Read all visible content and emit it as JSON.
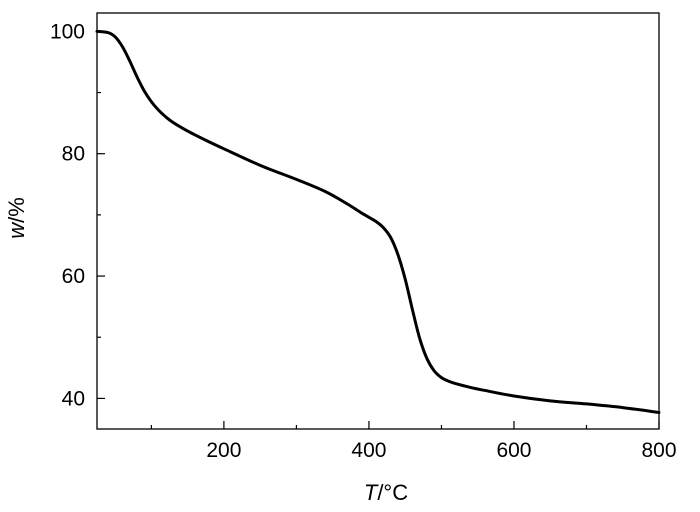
{
  "chart_data": {
    "type": "line",
    "xlabel": {
      "var": "T",
      "unit": "/°C"
    },
    "ylabel": {
      "var": "w",
      "unit": "/%"
    },
    "xlim": [
      25,
      800
    ],
    "ylim": [
      35,
      103
    ],
    "xticks": [
      200,
      400,
      600,
      800
    ],
    "xminor": [
      100,
      300,
      500,
      700
    ],
    "yticks": [
      40,
      60,
      80,
      100
    ],
    "yminor": [
      50,
      70,
      90
    ],
    "grid": false,
    "legend": "none",
    "series": [
      {
        "color": "#000000",
        "x": [
          25,
          40,
          50,
          60,
          70,
          80,
          90,
          100,
          110,
          120,
          130,
          150,
          175,
          200,
          250,
          300,
          340,
          370,
          390,
          410,
          420,
          430,
          440,
          450,
          460,
          470,
          480,
          490,
          500,
          510,
          520,
          540,
          560,
          600,
          650,
          700,
          750,
          800
        ],
        "y": [
          100,
          99.8,
          99.1,
          97.5,
          95.2,
          92.6,
          90.3,
          88.5,
          87.1,
          86.0,
          85.1,
          83.7,
          82.2,
          80.8,
          78.1,
          75.8,
          73.8,
          71.8,
          70.3,
          68.9,
          67.9,
          66.3,
          63.5,
          59.5,
          54.5,
          49.8,
          46.5,
          44.5,
          43.4,
          42.8,
          42.4,
          41.8,
          41.3,
          40.4,
          39.6,
          39.1,
          38.5,
          37.7
        ]
      }
    ]
  }
}
